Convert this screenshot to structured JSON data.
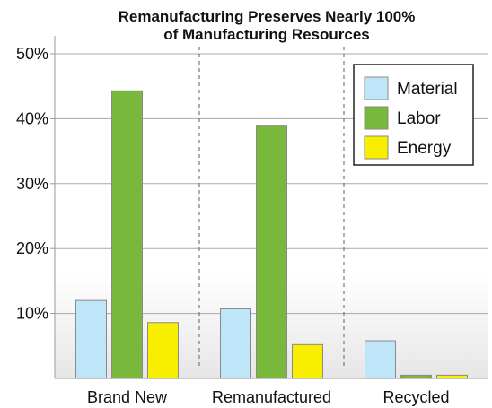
{
  "chart_data": {
    "type": "bar",
    "title_lines": [
      "Remanufacturing Preserves Nearly 100%",
      "of Manufacturing Resources"
    ],
    "categories": [
      "Brand New",
      "Remanufactured",
      "Recycled"
    ],
    "series": [
      {
        "name": "Material",
        "color": "#bfe6f8",
        "values": [
          12,
          10.7,
          5.8
        ]
      },
      {
        "name": "Labor",
        "color": "#78b83c",
        "values": [
          44.3,
          39,
          0.5
        ]
      },
      {
        "name": "Energy",
        "color": "#f8ee00",
        "values": [
          8.6,
          5.2,
          0.5
        ]
      }
    ],
    "ylim": [
      0,
      50
    ],
    "yticks": [
      10,
      20,
      30,
      40,
      50
    ],
    "ytick_labels": [
      "10%",
      "20%",
      "30%",
      "40%",
      "50%"
    ],
    "legend_position": "top-right",
    "grid": "horizontal",
    "category_separators": "dashed"
  }
}
